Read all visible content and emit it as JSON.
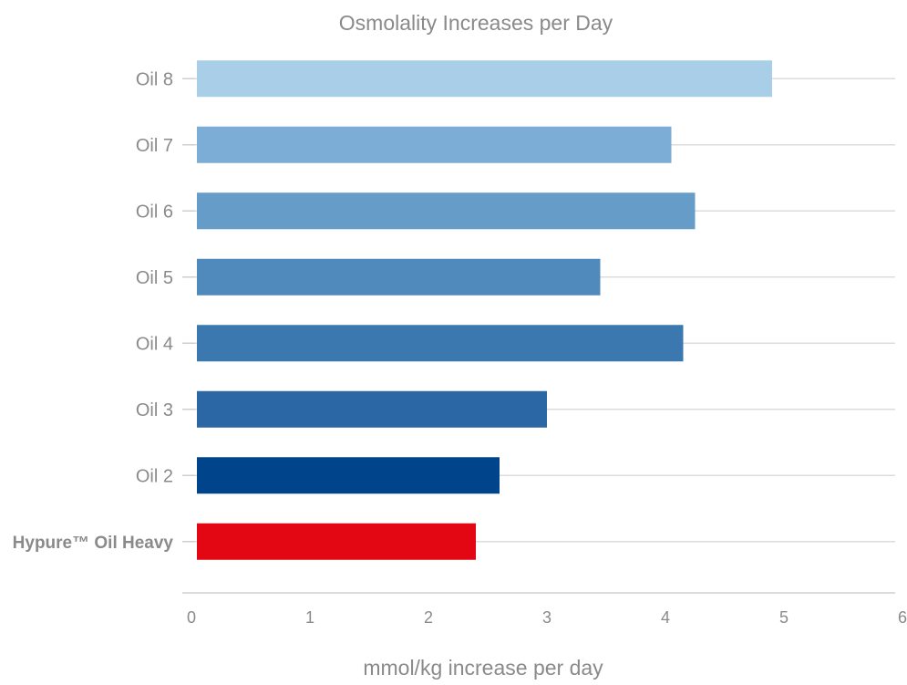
{
  "chart_data": {
    "type": "bar",
    "orientation": "horizontal",
    "title": "Osmolality Increases per Day",
    "xlabel": "mmol/kg increase per day",
    "ylabel": "",
    "xlim": [
      0,
      6
    ],
    "xticks": [
      "0",
      "1",
      "2",
      "3",
      "4",
      "5",
      "6"
    ],
    "grid": true,
    "legend": "none",
    "categories": [
      "Oil 8",
      "Oil 7",
      "Oil 6",
      "Oil 5",
      "Oil 4",
      "Oil 3",
      "Oil 2",
      "Hypure™ Oil Heavy"
    ],
    "values": [
      4.9,
      4.05,
      4.25,
      3.45,
      4.15,
      3.0,
      2.6,
      2.4
    ],
    "colors": [
      "#a9cfe8",
      "#7cadd6",
      "#659cc8",
      "#5089bc",
      "#3b78b0",
      "#2a67a4",
      "#00458c",
      "#e30613"
    ],
    "highlight_category": "Hypure™ Oil Heavy"
  }
}
